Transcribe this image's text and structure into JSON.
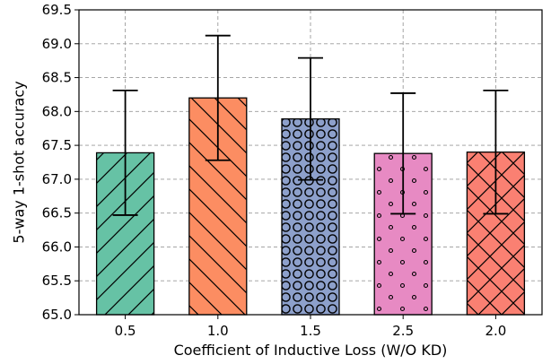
{
  "chart_data": {
    "type": "bar",
    "title": "",
    "xlabel": "Coefficient of Inductive Loss (W/O KD)",
    "ylabel": "5-way 1-shot accuracy",
    "categories": [
      "0.5",
      "1.0",
      "1.5",
      "2.5",
      "2.0"
    ],
    "values": [
      67.39,
      68.2,
      67.89,
      67.38,
      67.4
    ],
    "errors": [
      0.92,
      0.92,
      0.9,
      0.89,
      0.91
    ],
    "ylim": [
      65.0,
      69.5
    ],
    "yticks": [
      "65.0",
      "65.5",
      "66.0",
      "66.5",
      "67.0",
      "67.5",
      "68.0",
      "68.5",
      "69.0",
      "69.5"
    ],
    "grid": true,
    "colors": [
      "#66c2a5",
      "#fc8d62",
      "#8da0cb",
      "#e78ac3",
      "#fa8072"
    ],
    "hatches": [
      "diagonal-forward",
      "diagonal-backward",
      "circles",
      "dots",
      "crosshatch"
    ]
  }
}
